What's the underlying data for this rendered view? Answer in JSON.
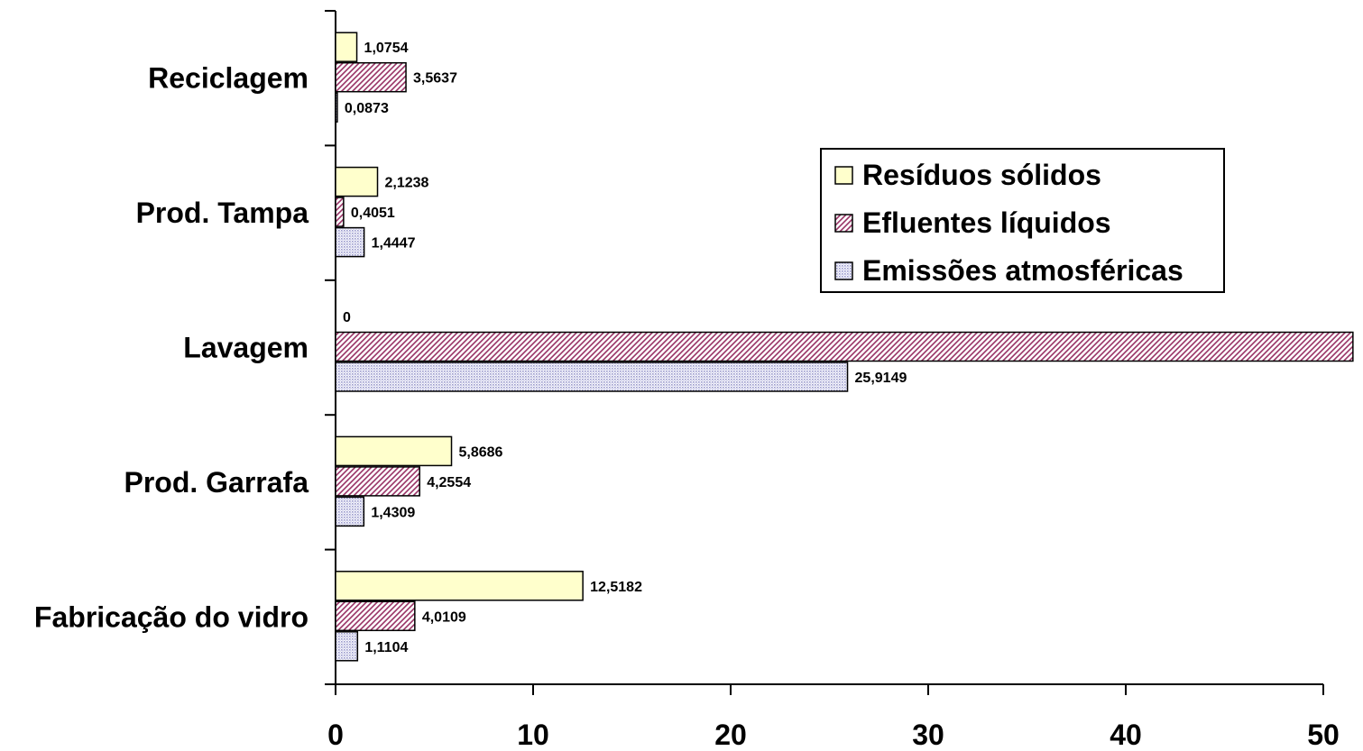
{
  "chart_data": {
    "type": "bar",
    "orientation": "horizontal",
    "categories": [
      "Fabricação do vidro",
      "Prod. Garrafa",
      "Lavagem",
      "Prod. Tampa",
      "Reciclagem"
    ],
    "series": [
      {
        "name": "Resíduos sólidos",
        "values": [
          12.5182,
          5.8686,
          0,
          2.1238,
          1.0754
        ],
        "labels": [
          "12,5182",
          "5,8686",
          "0",
          "2,1238",
          "1,0754"
        ],
        "color": "#ffffcc",
        "pattern": "solid"
      },
      {
        "name": "Efluentes líquidos",
        "values": [
          4.0109,
          4.2554,
          51.5,
          0.4051,
          3.5637
        ],
        "labels": [
          "4,0109",
          "4,2554",
          "",
          "0,4051",
          "3,5637"
        ],
        "color": "#993366",
        "pattern": "diagonal-hatch"
      },
      {
        "name": "Emissões atmosféricas",
        "values": [
          1.1104,
          1.4309,
          25.9149,
          1.4447,
          0.0873
        ],
        "labels": [
          "1,1104",
          "1,4309",
          "25,9149",
          "1,4447",
          "0,0873"
        ],
        "color": "#ccccff",
        "pattern": "dots"
      }
    ],
    "xlim": [
      0,
      50
    ],
    "xticks": [
      "0",
      "10",
      "20",
      "30",
      "40",
      "50"
    ],
    "legend_position": "right",
    "grid": false,
    "xlabel": "",
    "ylabel": "",
    "title": ""
  }
}
